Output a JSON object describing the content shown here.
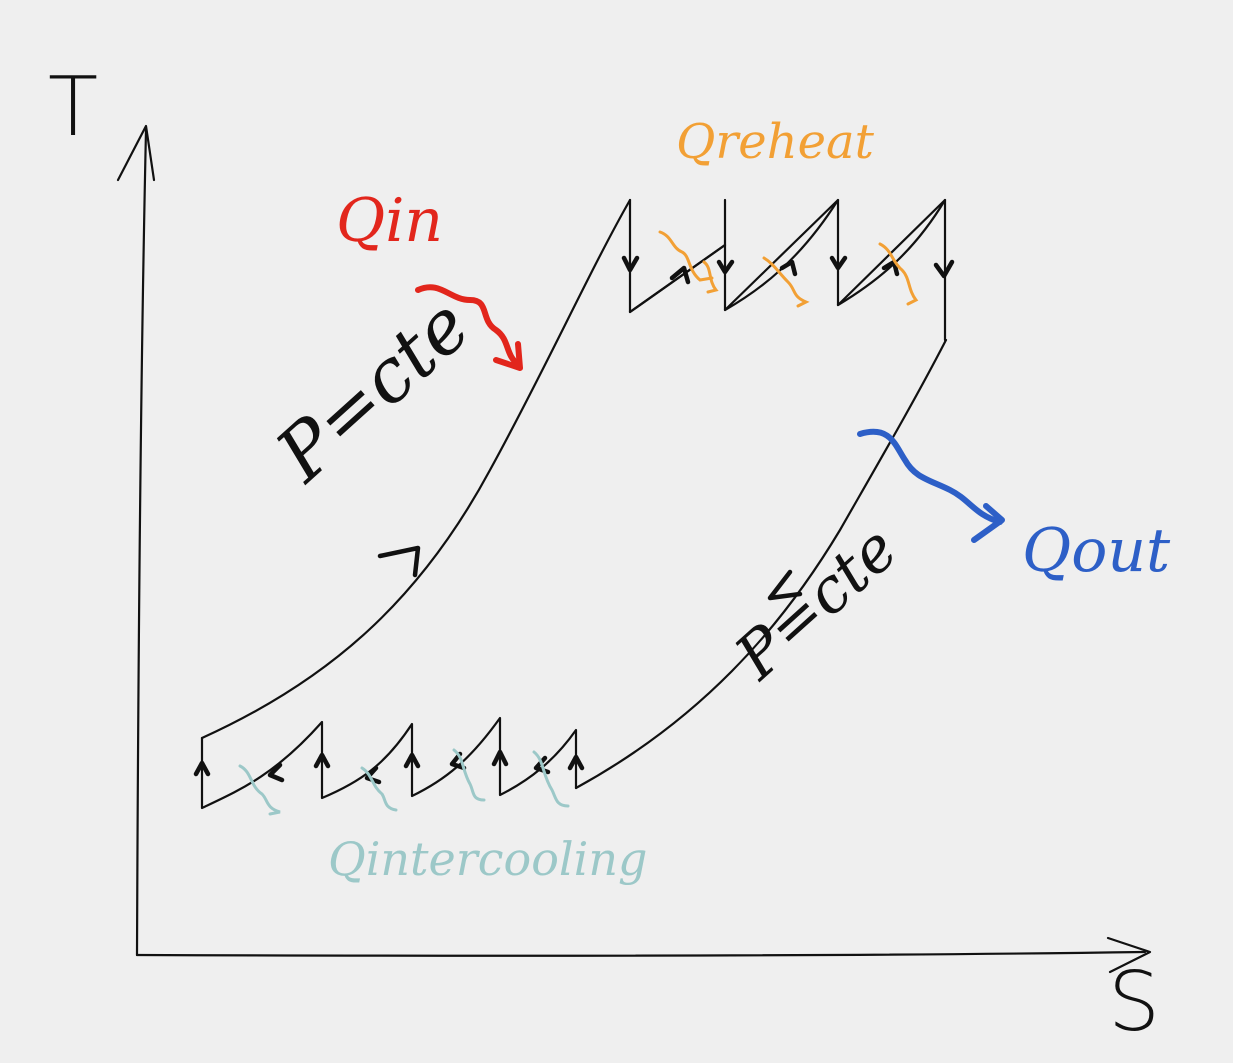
{
  "axes": {
    "y_label": "T",
    "x_label": "S"
  },
  "annotations": {
    "heat_in": "Qin",
    "heat_reheat": "Qreheat",
    "heat_out": "Qout",
    "heat_intercooling": "Qintercooling",
    "isobar_high": "P=cte",
    "isobar_low": "P=cte"
  },
  "colors": {
    "background": "#efefef",
    "ink": "#111111",
    "heat_in": "#e2261c",
    "heat_reheat": "#f2a035",
    "heat_out": "#2d5fc7",
    "heat_intercooling": "#9cc8c8"
  },
  "icons": {
    "heat_in_arrow": "wavy-arrow-icon",
    "heat_out_arrow": "wavy-arrow-icon",
    "direction_arrow": "arrowhead-icon"
  }
}
